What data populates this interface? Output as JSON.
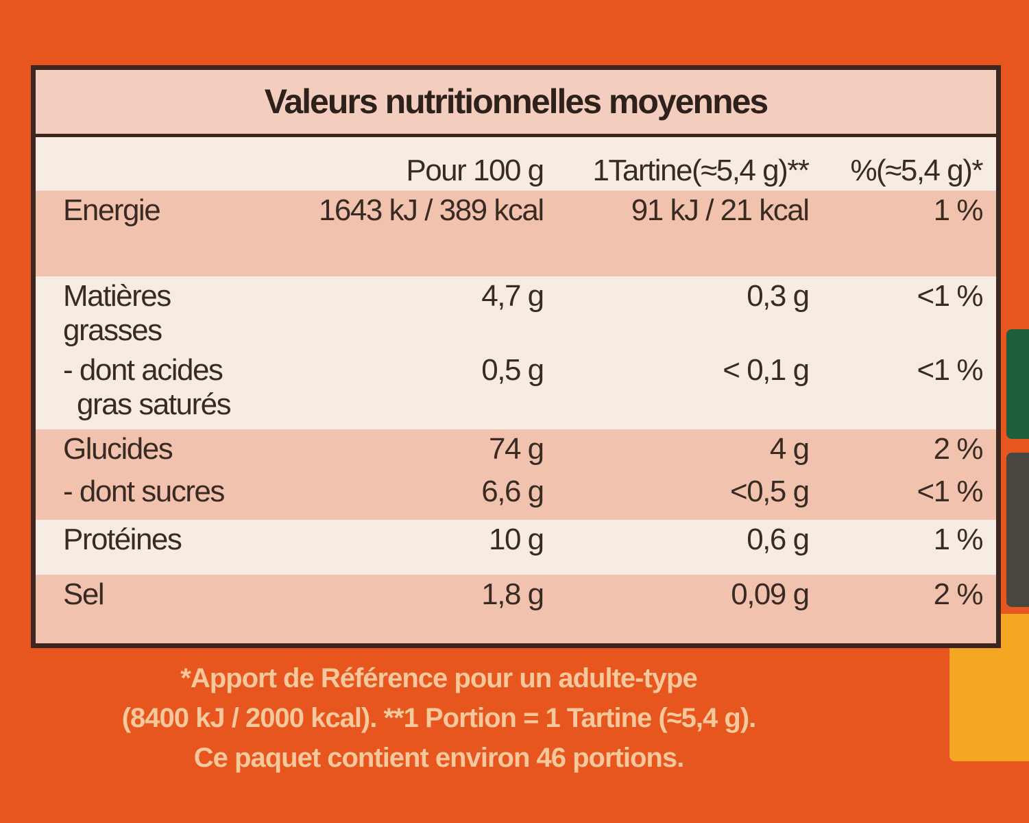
{
  "title": "Valeurs nutritionnelles moyennes",
  "table": {
    "columns": [
      "Pour 100 g",
      "1Tartine(≈5,4 g)**",
      "%(≈5,4 g)*"
    ],
    "groups": [
      [
        [
          "Energie",
          "1643 kJ / 389 kcal",
          "91 kJ / 21 kcal",
          "1 %"
        ]
      ],
      [
        [
          "Matières grasses",
          "4,7 g",
          "0,3 g",
          "<1 %"
        ],
        [
          "- dont acides gras saturés",
          "0,5 g",
          "< 0,1 g",
          "<1 %"
        ]
      ],
      [
        [
          "Glucides",
          "74 g",
          "4 g",
          "2 %"
        ],
        [
          "- dont sucres",
          "6,6 g",
          "<0,5 g",
          "<1 %"
        ]
      ],
      [
        [
          "Protéines",
          "10 g",
          "0,6 g",
          "1 %"
        ]
      ],
      [
        [
          "Sel",
          "1,8 g",
          "0,09 g",
          "2 %"
        ]
      ]
    ]
  },
  "footnotes": [
    "*Apport de Référence pour un adulte-type",
    "(8400 kJ / 2000 kcal). **1 Portion = 1 Tartine (≈5,4 g).",
    "Ce paquet contient environ 46 portions."
  ]
}
